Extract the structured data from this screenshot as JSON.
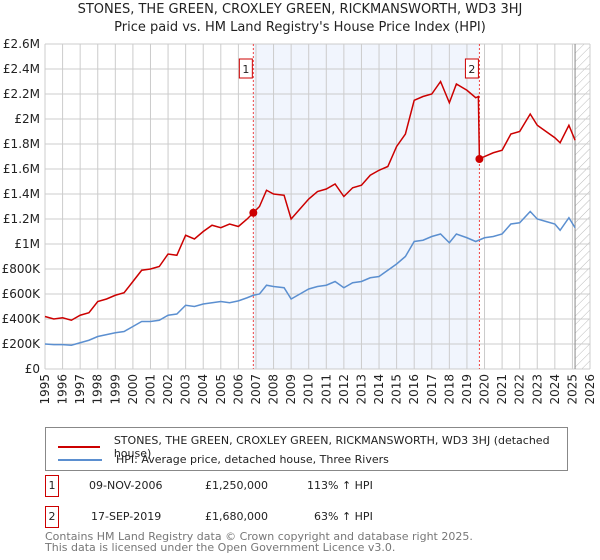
{
  "chart_data": {
    "type": "line",
    "title": "STONES, THE GREEN, CROXLEY GREEN, RICKMANSWORTH, WD3 3HJ",
    "subtitle": "Price paid vs. HM Land Registry's House Price Index (HPI)",
    "xlim": [
      1995,
      2026
    ],
    "ylim": [
      0,
      2600000
    ],
    "x_ticks": [
      "1995",
      "1996",
      "1997",
      "1998",
      "1999",
      "2000",
      "2001",
      "2002",
      "2003",
      "2004",
      "2005",
      "2006",
      "2007",
      "2008",
      "2009",
      "2010",
      "2011",
      "2012",
      "2013",
      "2014",
      "2015",
      "2016",
      "2017",
      "2018",
      "2019",
      "2020",
      "2021",
      "2022",
      "2023",
      "2024",
      "2025",
      "2026"
    ],
    "y_ticks": [
      {
        "v": 0,
        "l": "£0"
      },
      {
        "v": 200000,
        "l": "£200K"
      },
      {
        "v": 400000,
        "l": "£400K"
      },
      {
        "v": 600000,
        "l": "£600K"
      },
      {
        "v": 800000,
        "l": "£800K"
      },
      {
        "v": 1000000,
        "l": "£1M"
      },
      {
        "v": 1200000,
        "l": "£1.2M"
      },
      {
        "v": 1400000,
        "l": "£1.4M"
      },
      {
        "v": 1600000,
        "l": "£1.6M"
      },
      {
        "v": 1800000,
        "l": "£1.8M"
      },
      {
        "v": 2000000,
        "l": "£2M"
      },
      {
        "v": 2200000,
        "l": "£2.2M"
      },
      {
        "v": 2400000,
        "l": "£2.4M"
      },
      {
        "v": 2600000,
        "l": "£2.6M"
      }
    ],
    "grid": true,
    "shaded_range": [
      2006.85,
      2019.71
    ],
    "forecast_hatch_from": 2025.15,
    "series": [
      {
        "name": "STONES, THE GREEN, CROXLEY GREEN, RICKMANSWORTH, WD3 3HJ (detached house)",
        "color": "#cc0000",
        "points": [
          [
            1995,
            420000
          ],
          [
            1995.5,
            400000
          ],
          [
            1996,
            410000
          ],
          [
            1996.5,
            390000
          ],
          [
            1997,
            430000
          ],
          [
            1997.5,
            450000
          ],
          [
            1998,
            540000
          ],
          [
            1998.5,
            560000
          ],
          [
            1999,
            590000
          ],
          [
            1999.5,
            610000
          ],
          [
            2000,
            700000
          ],
          [
            2000.5,
            790000
          ],
          [
            2001,
            800000
          ],
          [
            2001.5,
            820000
          ],
          [
            2002,
            920000
          ],
          [
            2002.5,
            910000
          ],
          [
            2003,
            1070000
          ],
          [
            2003.5,
            1040000
          ],
          [
            2004,
            1100000
          ],
          [
            2004.5,
            1150000
          ],
          [
            2005,
            1130000
          ],
          [
            2005.5,
            1160000
          ],
          [
            2006,
            1140000
          ],
          [
            2006.5,
            1200000
          ],
          [
            2006.85,
            1250000
          ],
          [
            2007.2,
            1300000
          ],
          [
            2007.6,
            1430000
          ],
          [
            2008,
            1400000
          ],
          [
            2008.6,
            1390000
          ],
          [
            2009,
            1200000
          ],
          [
            2009.5,
            1280000
          ],
          [
            2010,
            1360000
          ],
          [
            2010.5,
            1420000
          ],
          [
            2011,
            1440000
          ],
          [
            2011.5,
            1480000
          ],
          [
            2012,
            1380000
          ],
          [
            2012.5,
            1450000
          ],
          [
            2013,
            1470000
          ],
          [
            2013.5,
            1550000
          ],
          [
            2014,
            1590000
          ],
          [
            2014.5,
            1620000
          ],
          [
            2015,
            1780000
          ],
          [
            2015.5,
            1880000
          ],
          [
            2016,
            2150000
          ],
          [
            2016.5,
            2180000
          ],
          [
            2017,
            2200000
          ],
          [
            2017.5,
            2300000
          ],
          [
            2018,
            2130000
          ],
          [
            2018.4,
            2280000
          ],
          [
            2019,
            2230000
          ],
          [
            2019.5,
            2170000
          ],
          [
            2019.65,
            2180000
          ],
          [
            2019.71,
            1680000
          ],
          [
            2020,
            1700000
          ],
          [
            2020.5,
            1730000
          ],
          [
            2021,
            1750000
          ],
          [
            2021.5,
            1880000
          ],
          [
            2022,
            1900000
          ],
          [
            2022.6,
            2040000
          ],
          [
            2023,
            1950000
          ],
          [
            2023.5,
            1900000
          ],
          [
            2024,
            1850000
          ],
          [
            2024.3,
            1810000
          ],
          [
            2024.8,
            1950000
          ],
          [
            2025.15,
            1830000
          ]
        ]
      },
      {
        "name": "HPI: Average price, detached house, Three Rivers",
        "color": "#5b8fd0",
        "points": [
          [
            1995,
            200000
          ],
          [
            1995.5,
            195000
          ],
          [
            1996,
            195000
          ],
          [
            1996.5,
            190000
          ],
          [
            1997,
            210000
          ],
          [
            1997.5,
            230000
          ],
          [
            1998,
            260000
          ],
          [
            1998.5,
            275000
          ],
          [
            1999,
            290000
          ],
          [
            1999.5,
            300000
          ],
          [
            2000,
            340000
          ],
          [
            2000.5,
            380000
          ],
          [
            2001,
            380000
          ],
          [
            2001.5,
            390000
          ],
          [
            2002,
            430000
          ],
          [
            2002.5,
            440000
          ],
          [
            2003,
            510000
          ],
          [
            2003.5,
            500000
          ],
          [
            2004,
            520000
          ],
          [
            2004.5,
            530000
          ],
          [
            2005,
            540000
          ],
          [
            2005.5,
            530000
          ],
          [
            2006,
            545000
          ],
          [
            2006.5,
            570000
          ],
          [
            2006.85,
            590000
          ],
          [
            2007.2,
            600000
          ],
          [
            2007.6,
            670000
          ],
          [
            2008,
            660000
          ],
          [
            2008.6,
            650000
          ],
          [
            2009,
            560000
          ],
          [
            2009.5,
            600000
          ],
          [
            2010,
            640000
          ],
          [
            2010.5,
            660000
          ],
          [
            2011,
            670000
          ],
          [
            2011.5,
            700000
          ],
          [
            2012,
            650000
          ],
          [
            2012.5,
            690000
          ],
          [
            2013,
            700000
          ],
          [
            2013.5,
            730000
          ],
          [
            2014,
            740000
          ],
          [
            2014.5,
            790000
          ],
          [
            2015,
            840000
          ],
          [
            2015.5,
            900000
          ],
          [
            2016,
            1020000
          ],
          [
            2016.5,
            1030000
          ],
          [
            2017,
            1060000
          ],
          [
            2017.5,
            1080000
          ],
          [
            2018,
            1010000
          ],
          [
            2018.4,
            1080000
          ],
          [
            2019,
            1050000
          ],
          [
            2019.5,
            1020000
          ],
          [
            2020,
            1050000
          ],
          [
            2020.5,
            1060000
          ],
          [
            2021,
            1080000
          ],
          [
            2021.5,
            1160000
          ],
          [
            2022,
            1170000
          ],
          [
            2022.6,
            1260000
          ],
          [
            2023,
            1200000
          ],
          [
            2023.5,
            1180000
          ],
          [
            2024,
            1160000
          ],
          [
            2024.3,
            1110000
          ],
          [
            2024.8,
            1210000
          ],
          [
            2025.15,
            1130000
          ]
        ]
      }
    ],
    "markers": [
      {
        "id": "1",
        "x": 2006.85,
        "y": 1250000
      },
      {
        "id": "2",
        "x": 2019.71,
        "y": 1680000
      }
    ]
  },
  "header": {
    "title": "STONES, THE GREEN, CROXLEY GREEN, RICKMANSWORTH, WD3 3HJ",
    "subtitle": "Price paid vs. HM Land Registry's House Price Index (HPI)"
  },
  "legend": {
    "red": "STONES, THE GREEN, CROXLEY GREEN, RICKMANSWORTH, WD3 3HJ (detached house)",
    "blue": "HPI: Average price, detached house, Three Rivers"
  },
  "sales": [
    {
      "id": "1",
      "date": "09-NOV-2006",
      "price": "£1,250,000",
      "hpi": "113% ↑ HPI"
    },
    {
      "id": "2",
      "date": "17-SEP-2019",
      "price": "£1,680,000",
      "hpi": "63% ↑ HPI"
    }
  ],
  "footer": {
    "line1": "Contains HM Land Registry data © Crown copyright and database right 2025.",
    "line2": "This data is licensed under the Open Government Licence v3.0."
  }
}
